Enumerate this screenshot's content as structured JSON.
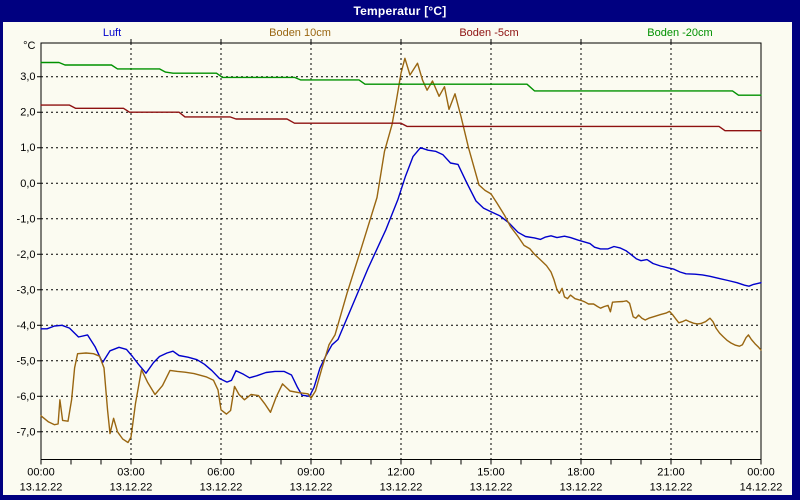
{
  "window": {
    "title": "Temperatur [°C]"
  },
  "legend": [
    {
      "label": "Luft",
      "color": "#0000cc"
    },
    {
      "label": "Boden 10cm",
      "color": "#996611"
    },
    {
      "label": "Boden -5cm",
      "color": "#8e1111"
    },
    {
      "label": "Boden -20cm",
      "color": "#009100"
    }
  ],
  "chart_data": {
    "type": "line",
    "title": "Temperatur [°C]",
    "ylabel": "°C",
    "grid": true,
    "legend_position": "top",
    "xlim_hours": [
      0,
      24
    ],
    "ylim": [
      -7.78,
      3.95
    ],
    "y_gridlines": [
      3,
      2,
      1,
      0,
      -1,
      -2,
      -3,
      -4,
      -5,
      -6,
      -7
    ],
    "y_tick_labels": [
      "3,0",
      "2,0",
      "1,0",
      "0,0",
      "-1,0",
      "-2,0",
      "-3,0",
      "-4,0",
      "-5,0",
      "-6,0",
      "-7,0"
    ],
    "x_minor_tick_every_hours": 1,
    "x_major_ticks": [
      {
        "t": 0,
        "time": "00:00",
        "date": "13.12.22"
      },
      {
        "t": 3,
        "time": "03:00",
        "date": "13.12.22"
      },
      {
        "t": 6,
        "time": "06:00",
        "date": "13.12.22"
      },
      {
        "t": 9,
        "time": "09:00",
        "date": "13.12.22"
      },
      {
        "t": 12,
        "time": "12:00",
        "date": "13.12.22"
      },
      {
        "t": 15,
        "time": "15:00",
        "date": "13.12.22"
      },
      {
        "t": 18,
        "time": "18:00",
        "date": "13.12.22"
      },
      {
        "t": 21,
        "time": "21:00",
        "date": "13.12.22"
      },
      {
        "t": 24,
        "time": "00:00",
        "date": "14.12.22"
      }
    ],
    "series": [
      {
        "name": "Luft",
        "color": "#0000cc",
        "points": [
          [
            0,
            -4.1
          ],
          [
            0.2,
            -4.1
          ],
          [
            0.45,
            -4.02
          ],
          [
            0.7,
            -4.0
          ],
          [
            0.95,
            -4.08
          ],
          [
            1.25,
            -4.33
          ],
          [
            1.55,
            -4.27
          ],
          [
            1.8,
            -4.6
          ],
          [
            2.05,
            -5.05
          ],
          [
            2.3,
            -4.72
          ],
          [
            2.6,
            -4.62
          ],
          [
            2.85,
            -4.68
          ],
          [
            3.05,
            -4.88
          ],
          [
            3.25,
            -5.1
          ],
          [
            3.5,
            -5.35
          ],
          [
            3.75,
            -5.05
          ],
          [
            3.95,
            -4.88
          ],
          [
            4.2,
            -4.78
          ],
          [
            4.4,
            -4.73
          ],
          [
            4.6,
            -4.85
          ],
          [
            4.9,
            -4.9
          ],
          [
            5.2,
            -4.97
          ],
          [
            5.45,
            -5.1
          ],
          [
            5.7,
            -5.28
          ],
          [
            5.95,
            -5.5
          ],
          [
            6.2,
            -5.6
          ],
          [
            6.35,
            -5.55
          ],
          [
            6.5,
            -5.28
          ],
          [
            6.75,
            -5.38
          ],
          [
            6.95,
            -5.48
          ],
          [
            7.2,
            -5.42
          ],
          [
            7.5,
            -5.33
          ],
          [
            7.8,
            -5.3
          ],
          [
            8.1,
            -5.3
          ],
          [
            8.35,
            -5.4
          ],
          [
            8.55,
            -5.75
          ],
          [
            8.7,
            -5.97
          ],
          [
            8.95,
            -6.0
          ],
          [
            9.1,
            -5.75
          ],
          [
            9.3,
            -5.2
          ],
          [
            9.5,
            -4.85
          ],
          [
            9.7,
            -4.55
          ],
          [
            9.9,
            -4.4
          ],
          [
            10.3,
            -3.6
          ],
          [
            10.9,
            -2.4
          ],
          [
            11.5,
            -1.3
          ],
          [
            11.9,
            -0.45
          ],
          [
            12.15,
            0.2
          ],
          [
            12.4,
            0.75
          ],
          [
            12.65,
            1.0
          ],
          [
            12.9,
            0.93
          ],
          [
            13.15,
            0.9
          ],
          [
            13.4,
            0.8
          ],
          [
            13.65,
            0.57
          ],
          [
            13.9,
            0.53
          ],
          [
            14.2,
            0.0
          ],
          [
            14.5,
            -0.5
          ],
          [
            14.75,
            -0.7
          ],
          [
            15.0,
            -0.8
          ],
          [
            15.3,
            -0.92
          ],
          [
            15.6,
            -1.12
          ],
          [
            15.9,
            -1.38
          ],
          [
            16.15,
            -1.5
          ],
          [
            16.45,
            -1.54
          ],
          [
            16.65,
            -1.58
          ],
          [
            16.8,
            -1.52
          ],
          [
            17.0,
            -1.48
          ],
          [
            17.2,
            -1.53
          ],
          [
            17.45,
            -1.49
          ],
          [
            17.65,
            -1.53
          ],
          [
            17.9,
            -1.6
          ],
          [
            18.1,
            -1.65
          ],
          [
            18.3,
            -1.7
          ],
          [
            18.45,
            -1.8
          ],
          [
            18.65,
            -1.85
          ],
          [
            18.9,
            -1.85
          ],
          [
            19.1,
            -1.78
          ],
          [
            19.3,
            -1.82
          ],
          [
            19.5,
            -1.9
          ],
          [
            19.7,
            -2.03
          ],
          [
            19.85,
            -2.13
          ],
          [
            20.0,
            -2.18
          ],
          [
            20.2,
            -2.15
          ],
          [
            20.4,
            -2.26
          ],
          [
            20.65,
            -2.33
          ],
          [
            20.9,
            -2.38
          ],
          [
            21.1,
            -2.42
          ],
          [
            21.3,
            -2.5
          ],
          [
            21.5,
            -2.55
          ],
          [
            21.8,
            -2.56
          ],
          [
            22.05,
            -2.58
          ],
          [
            22.3,
            -2.62
          ],
          [
            22.6,
            -2.68
          ],
          [
            22.9,
            -2.74
          ],
          [
            23.2,
            -2.8
          ],
          [
            23.45,
            -2.87
          ],
          [
            23.6,
            -2.9
          ],
          [
            23.75,
            -2.85
          ],
          [
            24,
            -2.8
          ]
        ]
      },
      {
        "name": "Boden 10cm",
        "color": "#996611",
        "points": [
          [
            0,
            -6.55
          ],
          [
            0.25,
            -6.72
          ],
          [
            0.45,
            -6.8
          ],
          [
            0.57,
            -6.78
          ],
          [
            0.63,
            -6.1
          ],
          [
            0.72,
            -6.68
          ],
          [
            0.9,
            -6.7
          ],
          [
            1.02,
            -6.1
          ],
          [
            1.12,
            -5.2
          ],
          [
            1.22,
            -4.8
          ],
          [
            1.5,
            -4.78
          ],
          [
            1.75,
            -4.8
          ],
          [
            1.95,
            -4.87
          ],
          [
            2.1,
            -5.2
          ],
          [
            2.22,
            -6.4
          ],
          [
            2.3,
            -7.05
          ],
          [
            2.42,
            -6.62
          ],
          [
            2.55,
            -7.0
          ],
          [
            2.72,
            -7.2
          ],
          [
            2.9,
            -7.3
          ],
          [
            3.0,
            -7.15
          ],
          [
            3.15,
            -6.2
          ],
          [
            3.35,
            -5.25
          ],
          [
            3.55,
            -5.6
          ],
          [
            3.8,
            -5.95
          ],
          [
            4.05,
            -5.7
          ],
          [
            4.3,
            -5.27
          ],
          [
            4.55,
            -5.3
          ],
          [
            4.8,
            -5.32
          ],
          [
            5.1,
            -5.36
          ],
          [
            5.5,
            -5.45
          ],
          [
            5.75,
            -5.55
          ],
          [
            5.9,
            -5.82
          ],
          [
            6.0,
            -6.38
          ],
          [
            6.18,
            -6.5
          ],
          [
            6.32,
            -6.4
          ],
          [
            6.45,
            -5.72
          ],
          [
            6.6,
            -5.95
          ],
          [
            6.78,
            -6.1
          ],
          [
            7.0,
            -5.95
          ],
          [
            7.25,
            -5.98
          ],
          [
            7.45,
            -6.2
          ],
          [
            7.65,
            -6.45
          ],
          [
            7.85,
            -6.0
          ],
          [
            8.05,
            -5.65
          ],
          [
            8.3,
            -5.85
          ],
          [
            8.6,
            -5.9
          ],
          [
            8.9,
            -5.93
          ],
          [
            9.0,
            -6.05
          ],
          [
            9.15,
            -5.85
          ],
          [
            9.35,
            -5.25
          ],
          [
            9.6,
            -4.55
          ],
          [
            9.8,
            -4.27
          ],
          [
            10.2,
            -3.1
          ],
          [
            10.65,
            -1.9
          ],
          [
            11.2,
            -0.4
          ],
          [
            11.45,
            0.9
          ],
          [
            11.7,
            1.65
          ],
          [
            11.85,
            2.35
          ],
          [
            12.0,
            3.1
          ],
          [
            12.13,
            3.52
          ],
          [
            12.3,
            3.05
          ],
          [
            12.55,
            3.38
          ],
          [
            12.72,
            2.9
          ],
          [
            12.87,
            2.62
          ],
          [
            13.05,
            2.88
          ],
          [
            13.27,
            2.45
          ],
          [
            13.45,
            2.72
          ],
          [
            13.6,
            2.08
          ],
          [
            13.8,
            2.52
          ],
          [
            14.0,
            1.88
          ],
          [
            14.25,
            1.0
          ],
          [
            14.45,
            0.4
          ],
          [
            14.6,
            -0.05
          ],
          [
            14.8,
            -0.2
          ],
          [
            15.0,
            -0.3
          ],
          [
            15.2,
            -0.56
          ],
          [
            15.45,
            -0.9
          ],
          [
            15.65,
            -1.22
          ],
          [
            15.9,
            -1.5
          ],
          [
            16.1,
            -1.75
          ],
          [
            16.3,
            -1.85
          ],
          [
            16.45,
            -2.0
          ],
          [
            16.65,
            -2.16
          ],
          [
            16.85,
            -2.32
          ],
          [
            17.0,
            -2.5
          ],
          [
            17.1,
            -2.72
          ],
          [
            17.2,
            -3.0
          ],
          [
            17.28,
            -3.1
          ],
          [
            17.37,
            -2.96
          ],
          [
            17.45,
            -3.2
          ],
          [
            17.55,
            -3.25
          ],
          [
            17.65,
            -3.15
          ],
          [
            17.8,
            -3.25
          ],
          [
            18.0,
            -3.3
          ],
          [
            18.12,
            -3.34
          ],
          [
            18.25,
            -3.4
          ],
          [
            18.42,
            -3.4
          ],
          [
            18.55,
            -3.47
          ],
          [
            18.65,
            -3.52
          ],
          [
            18.78,
            -3.47
          ],
          [
            18.9,
            -3.44
          ],
          [
            18.98,
            -3.62
          ],
          [
            19.05,
            -3.35
          ],
          [
            19.2,
            -3.34
          ],
          [
            19.4,
            -3.33
          ],
          [
            19.52,
            -3.31
          ],
          [
            19.62,
            -3.38
          ],
          [
            19.74,
            -3.76
          ],
          [
            19.83,
            -3.8
          ],
          [
            19.92,
            -3.71
          ],
          [
            20.03,
            -3.8
          ],
          [
            20.14,
            -3.85
          ],
          [
            20.26,
            -3.8
          ],
          [
            20.45,
            -3.75
          ],
          [
            20.65,
            -3.7
          ],
          [
            20.85,
            -3.65
          ],
          [
            20.95,
            -3.61
          ],
          [
            21.05,
            -3.7
          ],
          [
            21.16,
            -3.82
          ],
          [
            21.26,
            -3.93
          ],
          [
            21.4,
            -3.89
          ],
          [
            21.5,
            -3.85
          ],
          [
            21.62,
            -3.9
          ],
          [
            21.75,
            -3.94
          ],
          [
            21.88,
            -3.96
          ],
          [
            22.0,
            -3.95
          ],
          [
            22.15,
            -3.9
          ],
          [
            22.3,
            -3.8
          ],
          [
            22.4,
            -3.9
          ],
          [
            22.5,
            -4.08
          ],
          [
            22.62,
            -4.22
          ],
          [
            22.75,
            -4.33
          ],
          [
            22.88,
            -4.43
          ],
          [
            23.0,
            -4.5
          ],
          [
            23.15,
            -4.56
          ],
          [
            23.28,
            -4.59
          ],
          [
            23.38,
            -4.55
          ],
          [
            23.5,
            -4.35
          ],
          [
            23.58,
            -4.27
          ],
          [
            23.68,
            -4.4
          ],
          [
            23.8,
            -4.52
          ],
          [
            23.92,
            -4.62
          ],
          [
            24,
            -4.7
          ]
        ]
      },
      {
        "name": "Boden -5cm",
        "color": "#8e1111",
        "points": [
          [
            0,
            2.2
          ],
          [
            0.95,
            2.2
          ],
          [
            1.15,
            2.11
          ],
          [
            2.75,
            2.11
          ],
          [
            2.95,
            2.0
          ],
          [
            4.6,
            2.0
          ],
          [
            4.8,
            1.87
          ],
          [
            6.3,
            1.87
          ],
          [
            6.5,
            1.81
          ],
          [
            8.2,
            1.81
          ],
          [
            8.45,
            1.69
          ],
          [
            12.0,
            1.69
          ],
          [
            12.2,
            1.6
          ],
          [
            22.6,
            1.6
          ],
          [
            22.8,
            1.48
          ],
          [
            24,
            1.48
          ]
        ]
      },
      {
        "name": "Boden -20cm",
        "color": "#009100",
        "points": [
          [
            0,
            3.4
          ],
          [
            0.6,
            3.4
          ],
          [
            0.8,
            3.33
          ],
          [
            2.35,
            3.33
          ],
          [
            2.55,
            3.22
          ],
          [
            3.95,
            3.22
          ],
          [
            4.15,
            3.13
          ],
          [
            4.4,
            3.1
          ],
          [
            5.85,
            3.1
          ],
          [
            6.05,
            2.98
          ],
          [
            8.45,
            2.98
          ],
          [
            8.65,
            2.91
          ],
          [
            10.6,
            2.91
          ],
          [
            10.8,
            2.79
          ],
          [
            16.2,
            2.79
          ],
          [
            16.45,
            2.6
          ],
          [
            23.05,
            2.6
          ],
          [
            23.25,
            2.48
          ],
          [
            24,
            2.48
          ]
        ]
      }
    ]
  }
}
